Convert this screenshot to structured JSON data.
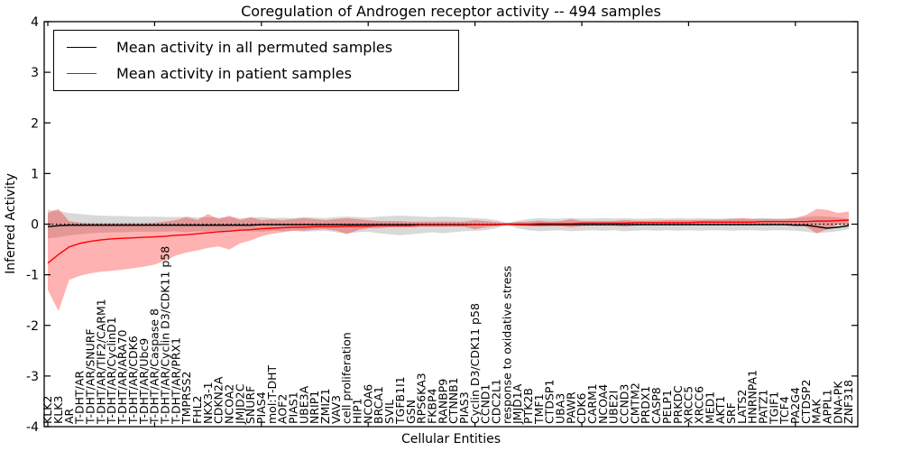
{
  "figure": {
    "title": "Coregulation of Androgen receptor activity -- 494 samples",
    "xlabel": "Cellular Entities",
    "ylabel": "Inferred Activity"
  },
  "legend": {
    "entries": [
      {
        "label": "Mean activity in all permuted samples",
        "color": "#000000"
      },
      {
        "label": "Mean activity in patient samples",
        "color": "#ff0000"
      }
    ]
  },
  "chart_data": {
    "type": "line",
    "title": "Coregulation of Androgen receptor activity -- 494 samples",
    "xlabel": "Cellular Entities",
    "ylabel": "Inferred Activity",
    "ylim": [
      -4,
      4
    ],
    "yticks": [
      -4,
      -3,
      -2,
      -1,
      0,
      1,
      2,
      3,
      4
    ],
    "grid": false,
    "legend_position": "upper left",
    "zero_reference_line": {
      "style": "dotted",
      "color": "#000000",
      "y": 0
    },
    "categories": [
      "KLK2",
      "KLK3",
      "AR",
      "T-DHT/AR",
      "T-DHT/AR/SNURF",
      "T-DHT/AR/TIF2/CARM1",
      "T-DHT/AR/CyclinD1",
      "T-DHT/AR/ARA70",
      "T-DHT/AR/CDK6",
      "T-DHT/AR/Ubc9",
      "T-DHT/AR/Caspase 8",
      "T-DHT/AR/Cyclin D3/CDK11 p58",
      "T-DHT/AR/PRX1",
      "TMPRSS2",
      "FHL2",
      "NKX3-1",
      "CDKN2A",
      "NCOA2",
      "JMJD2C",
      "SNURF",
      "PIAS4",
      "mol:T-DHT",
      "AOF2",
      "PIAS1",
      "UBE3A",
      "NRIP1",
      "ZMIZ1",
      "VAV3",
      "cell proliferation",
      "HIP1",
      "NCOA6",
      "BRCA1",
      "SVIL",
      "TGFB1I1",
      "GSN",
      "RPS6KA3",
      "FKBP4",
      "RANBP9",
      "CTNNB1",
      "PIAS3",
      "Cyclin D3/CDK11 p58",
      "CCND1",
      "CDC2L1",
      "response to oxidative stress",
      "JMJD1A",
      "PTK2B",
      "TMF1",
      "CTDSP1",
      "UBA3",
      "PAWR",
      "CDK6",
      "CARM1",
      "NCOA4",
      "UBE2I",
      "CCND3",
      "CMTM2",
      "PRDX1",
      "CASP8",
      "PELP1",
      "PRKDC",
      "XRCC5",
      "XRCC6",
      "MED1",
      "AKT1",
      "SRF",
      "LATS2",
      "HNRNPA1",
      "PATZ1",
      "TGIF1",
      "TCF4",
      "PA2G4",
      "CTDSP2",
      "MAK",
      "APPL1",
      "DNA-PK",
      "ZNF318"
    ],
    "series": [
      {
        "name": "Mean activity in all permuted samples",
        "color": "#000000",
        "band_color": "rgba(128,128,128,0.30)",
        "values": [
          -0.05,
          -0.03,
          -0.02,
          -0.02,
          -0.02,
          -0.02,
          -0.02,
          -0.02,
          -0.02,
          -0.02,
          -0.02,
          -0.02,
          -0.02,
          -0.02,
          -0.02,
          -0.02,
          -0.02,
          -0.02,
          -0.02,
          -0.02,
          -0.01,
          -0.01,
          -0.01,
          -0.01,
          -0.01,
          -0.01,
          -0.01,
          -0.01,
          -0.01,
          -0.01,
          -0.01,
          -0.01,
          -0.01,
          -0.01,
          -0.01,
          -0.01,
          -0.01,
          -0.01,
          -0.01,
          -0.01,
          -0.01,
          -0.01,
          -0.01,
          0.0,
          -0.01,
          -0.01,
          -0.01,
          -0.01,
          -0.01,
          -0.01,
          -0.01,
          -0.01,
          -0.01,
          -0.01,
          -0.01,
          -0.01,
          -0.01,
          -0.01,
          -0.01,
          -0.01,
          -0.01,
          -0.01,
          -0.01,
          -0.01,
          -0.01,
          -0.01,
          -0.01,
          -0.01,
          -0.01,
          -0.01,
          -0.02,
          -0.02,
          -0.05,
          -0.08,
          -0.06,
          -0.03
        ],
        "band_low": [
          -0.28,
          -0.26,
          -0.22,
          -0.2,
          -0.18,
          -0.17,
          -0.16,
          -0.16,
          -0.15,
          -0.15,
          -0.15,
          -0.15,
          -0.14,
          -0.16,
          -0.14,
          -0.15,
          -0.13,
          -0.15,
          -0.13,
          -0.14,
          -0.15,
          -0.13,
          -0.14,
          -0.13,
          -0.15,
          -0.14,
          -0.13,
          -0.16,
          -0.18,
          -0.16,
          -0.15,
          -0.18,
          -0.2,
          -0.22,
          -0.2,
          -0.18,
          -0.16,
          -0.18,
          -0.16,
          -0.14,
          -0.13,
          -0.12,
          -0.08,
          -0.02,
          -0.08,
          -0.12,
          -0.14,
          -0.13,
          -0.12,
          -0.14,
          -0.13,
          -0.12,
          -0.13,
          -0.12,
          -0.14,
          -0.13,
          -0.12,
          -0.13,
          -0.12,
          -0.13,
          -0.12,
          -0.13,
          -0.12,
          -0.12,
          -0.13,
          -0.12,
          -0.12,
          -0.13,
          -0.12,
          -0.12,
          -0.13,
          -0.15,
          -0.18,
          -0.16,
          -0.14,
          -0.1
        ],
        "band_high": [
          0.28,
          0.26,
          0.22,
          0.2,
          0.18,
          0.17,
          0.16,
          0.16,
          0.15,
          0.15,
          0.15,
          0.14,
          0.14,
          0.15,
          0.13,
          0.14,
          0.13,
          0.14,
          0.12,
          0.13,
          0.14,
          0.12,
          0.13,
          0.12,
          0.14,
          0.13,
          0.12,
          0.14,
          0.15,
          0.14,
          0.13,
          0.15,
          0.16,
          0.17,
          0.16,
          0.15,
          0.14,
          0.15,
          0.14,
          0.13,
          0.12,
          0.11,
          0.08,
          0.02,
          0.07,
          0.1,
          0.12,
          0.11,
          0.11,
          0.12,
          0.11,
          0.11,
          0.12,
          0.11,
          0.12,
          0.11,
          0.11,
          0.12,
          0.11,
          0.12,
          0.11,
          0.12,
          0.11,
          0.11,
          0.12,
          0.11,
          0.11,
          0.12,
          0.11,
          0.11,
          0.12,
          0.14,
          0.16,
          0.15,
          0.13,
          0.1
        ]
      },
      {
        "name": "Mean activity in patient samples",
        "color": "#ff0000",
        "band_color": "rgba(255,0,0,0.30)",
        "values": [
          -0.77,
          -0.6,
          -0.45,
          -0.38,
          -0.34,
          -0.31,
          -0.29,
          -0.28,
          -0.27,
          -0.26,
          -0.25,
          -0.24,
          -0.22,
          -0.21,
          -0.19,
          -0.17,
          -0.15,
          -0.14,
          -0.12,
          -0.11,
          -0.09,
          -0.08,
          -0.07,
          -0.06,
          -0.06,
          -0.05,
          -0.05,
          -0.05,
          -0.04,
          -0.04,
          -0.04,
          -0.03,
          -0.03,
          -0.03,
          -0.03,
          -0.02,
          -0.02,
          -0.02,
          -0.02,
          -0.02,
          -0.01,
          -0.01,
          -0.01,
          0.0,
          0.0,
          0.0,
          0.01,
          0.01,
          0.01,
          0.01,
          0.02,
          0.02,
          0.02,
          0.02,
          0.02,
          0.03,
          0.03,
          0.03,
          0.03,
          0.03,
          0.03,
          0.04,
          0.04,
          0.04,
          0.04,
          0.04,
          0.04,
          0.05,
          0.05,
          0.05,
          0.05,
          0.05,
          0.06,
          0.06,
          0.07,
          0.08
        ],
        "band_low": [
          -1.3,
          -1.72,
          -1.1,
          -1.02,
          -0.97,
          -0.94,
          -0.92,
          -0.9,
          -0.87,
          -0.84,
          -0.8,
          -0.72,
          -0.62,
          -0.56,
          -0.52,
          -0.47,
          -0.44,
          -0.5,
          -0.38,
          -0.32,
          -0.24,
          -0.19,
          -0.16,
          -0.13,
          -0.13,
          -0.11,
          -0.1,
          -0.13,
          -0.2,
          -0.12,
          -0.08,
          -0.08,
          -0.06,
          -0.06,
          -0.06,
          -0.05,
          -0.05,
          -0.05,
          -0.05,
          -0.05,
          -0.1,
          -0.06,
          -0.04,
          -0.02,
          -0.03,
          -0.04,
          -0.05,
          -0.04,
          -0.04,
          -0.06,
          -0.04,
          -0.03,
          -0.03,
          -0.03,
          -0.05,
          -0.03,
          -0.02,
          -0.02,
          -0.02,
          -0.02,
          -0.02,
          -0.01,
          -0.01,
          -0.01,
          -0.02,
          -0.01,
          -0.01,
          0.0,
          0.0,
          0.0,
          0.0,
          -0.05,
          -0.18,
          -0.1,
          0.0,
          -0.02
        ],
        "band_high": [
          0.22,
          0.3,
          0.06,
          0.03,
          0.02,
          0.02,
          0.02,
          0.02,
          0.02,
          0.02,
          0.03,
          0.05,
          0.08,
          0.14,
          0.08,
          0.2,
          0.1,
          0.17,
          0.08,
          0.14,
          0.08,
          0.1,
          0.08,
          0.1,
          0.12,
          0.1,
          0.08,
          0.1,
          0.12,
          0.1,
          0.08,
          0.06,
          0.06,
          0.06,
          0.05,
          0.05,
          0.05,
          0.05,
          0.05,
          0.05,
          0.08,
          0.06,
          0.04,
          0.02,
          0.04,
          0.05,
          0.07,
          0.05,
          0.06,
          0.1,
          0.06,
          0.06,
          0.06,
          0.06,
          0.08,
          0.07,
          0.07,
          0.07,
          0.08,
          0.08,
          0.08,
          0.08,
          0.09,
          0.09,
          0.1,
          0.12,
          0.1,
          0.1,
          0.1,
          0.1,
          0.12,
          0.18,
          0.3,
          0.28,
          0.22,
          0.25
        ]
      }
    ]
  }
}
